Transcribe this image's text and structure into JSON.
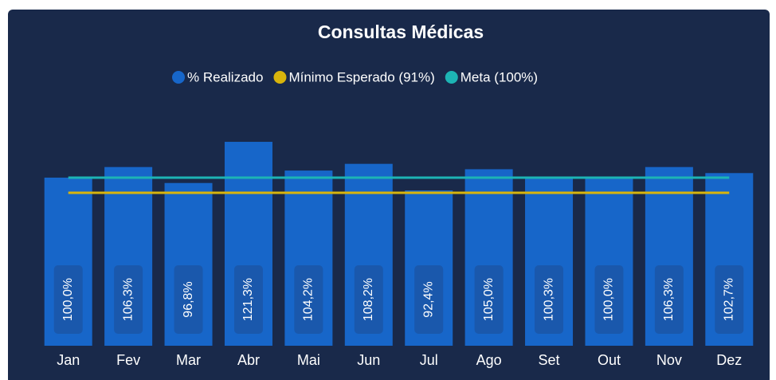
{
  "chart_data": {
    "type": "bar",
    "title": "Consultas Médicas",
    "categories": [
      "Jan",
      "Fev",
      "Mar",
      "Abr",
      "Mai",
      "Jun",
      "Jul",
      "Ago",
      "Set",
      "Out",
      "Nov",
      "Dez"
    ],
    "series": [
      {
        "name": "% Realizado",
        "type": "bar",
        "color": "#1766c9",
        "values": [
          100.0,
          106.3,
          96.8,
          121.3,
          104.2,
          108.2,
          92.4,
          105.0,
          100.3,
          100.0,
          106.3,
          102.7
        ],
        "value_labels": [
          "100,0%",
          "106,3%",
          "96,8%",
          "121,3%",
          "104,2%",
          "108,2%",
          "92,4%",
          "105,0%",
          "100,3%",
          "100,0%",
          "106,3%",
          "102,7%"
        ]
      },
      {
        "name": "Mínimo Esperado (91%)",
        "type": "line",
        "color": "#d8b40c",
        "values": [
          91,
          91,
          91,
          91,
          91,
          91,
          91,
          91,
          91,
          91,
          91,
          91
        ]
      },
      {
        "name": "Meta (100%)",
        "type": "line",
        "color": "#1db4b4",
        "values": [
          100,
          100,
          100,
          100,
          100,
          100,
          100,
          100,
          100,
          100,
          100,
          100
        ]
      }
    ],
    "ylim": [
      0,
      145
    ]
  }
}
